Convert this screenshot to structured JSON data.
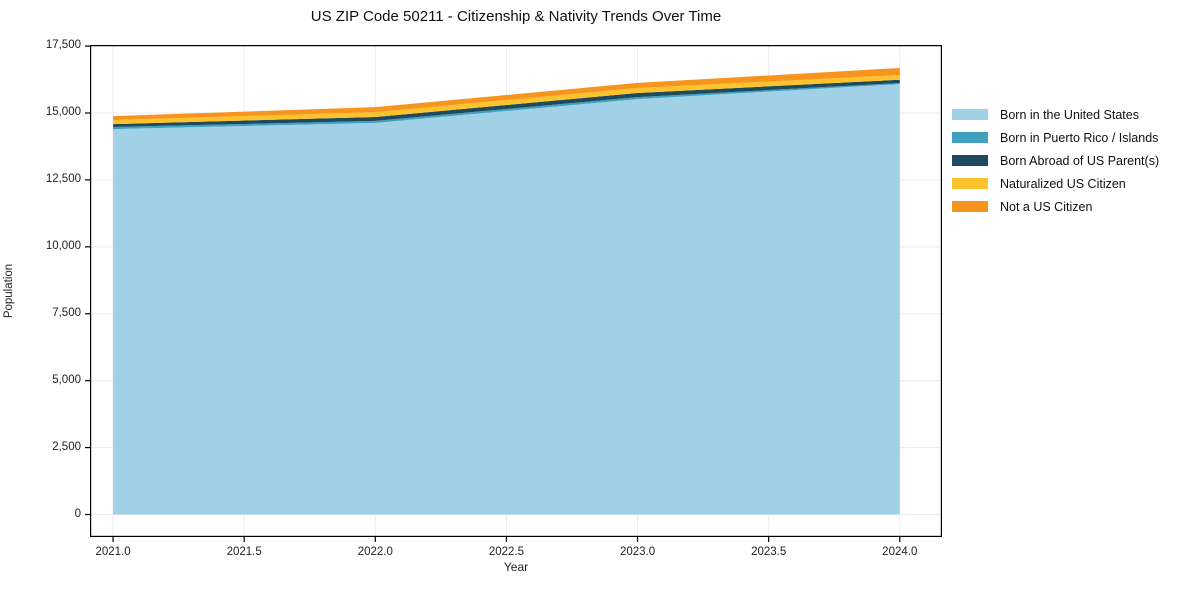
{
  "chart_data": {
    "type": "area",
    "stacked": true,
    "title": "US ZIP Code 50211 - Citizenship & Nativity Trends Over Time",
    "xlabel": "Year",
    "ylabel": "Population",
    "x": [
      2021,
      2022,
      2023,
      2024
    ],
    "series": [
      {
        "name": "Born in the United States",
        "color": "#A1D1E7",
        "values": [
          14400,
          14630,
          15520,
          16080
        ]
      },
      {
        "name": "Born in Puerto Rico / Islands",
        "color": "#3FA0C0",
        "values": [
          75,
          75,
          75,
          40
        ]
      },
      {
        "name": "Born Abroad of US Parent(s)",
        "color": "#1F4A5E",
        "values": [
          110,
          145,
          150,
          125
        ]
      },
      {
        "name": "Naturalized US Citizen",
        "color": "#FCC32D",
        "values": [
          150,
          185,
          190,
          175
        ]
      },
      {
        "name": "Not a US Citizen",
        "color": "#F7941E",
        "values": [
          150,
          185,
          190,
          260
        ]
      }
    ],
    "x_ticks": [
      {
        "value": 2021.0,
        "label": "2021.0"
      },
      {
        "value": 2021.5,
        "label": "2021.5"
      },
      {
        "value": 2022.0,
        "label": "2022.0"
      },
      {
        "value": 2022.5,
        "label": "2022.5"
      },
      {
        "value": 2023.0,
        "label": "2023.0"
      },
      {
        "value": 2023.5,
        "label": "2023.5"
      },
      {
        "value": 2024.0,
        "label": "2024.0"
      }
    ],
    "y_ticks": [
      {
        "value": 0,
        "label": "0"
      },
      {
        "value": 2500,
        "label": "2,500"
      },
      {
        "value": 5000,
        "label": "5,000"
      },
      {
        "value": 7500,
        "label": "7,500"
      },
      {
        "value": 10000,
        "label": "10,000"
      },
      {
        "value": 12500,
        "label": "12,500"
      },
      {
        "value": 15000,
        "label": "15,000"
      },
      {
        "value": 17500,
        "label": "17,500"
      }
    ],
    "xlim": [
      2020.912,
      2024.161
    ],
    "ylim": [
      -840,
      17540
    ],
    "grid": true,
    "grid_color": "#ebebeb",
    "spine_color": "#000000",
    "legend_position": "right-outside"
  }
}
